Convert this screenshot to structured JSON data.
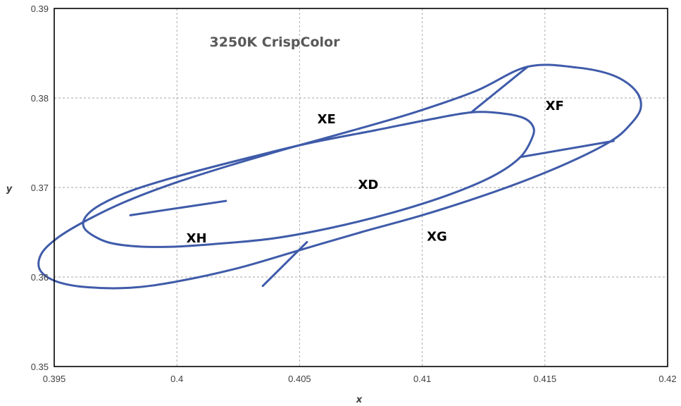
{
  "chart_data": {
    "type": "line",
    "title": "3250K CrispColor",
    "xlabel": "x",
    "ylabel": "y",
    "xlim": [
      0.395,
      0.42
    ],
    "ylim": [
      0.35,
      0.39
    ],
    "x_ticks": [
      "0.395",
      "0.4",
      "0.405",
      "0.41",
      "0.415",
      "0.42"
    ],
    "y_ticks": [
      "0.35",
      "0.36",
      "0.37",
      "0.38",
      "0.39"
    ],
    "grid": true,
    "legend": "none",
    "series_color": "#3f5ba9",
    "series": [
      {
        "closed": true,
        "points": [
          [
            0.4143,
            0.3835
          ],
          [
            0.4163,
            0.3834
          ],
          [
            0.4178,
            0.3825
          ],
          [
            0.4187,
            0.3808
          ],
          [
            0.4189,
            0.3788
          ],
          [
            0.4184,
            0.3768
          ],
          [
            0.4177,
            0.3752
          ],
          [
            0.4163,
            0.3732
          ],
          [
            0.4145,
            0.3711
          ],
          [
            0.4125,
            0.3691
          ],
          [
            0.41,
            0.3669
          ],
          [
            0.4075,
            0.365
          ],
          [
            0.405,
            0.363
          ],
          [
            0.4025,
            0.361
          ],
          [
            0.4,
            0.3595
          ],
          [
            0.3981,
            0.3588
          ],
          [
            0.3962,
            0.3589
          ],
          [
            0.395,
            0.3596
          ],
          [
            0.3944,
            0.3609
          ],
          [
            0.3945,
            0.3627
          ],
          [
            0.3952,
            0.3645
          ],
          [
            0.3963,
            0.3663
          ],
          [
            0.3978,
            0.3683
          ],
          [
            0.3998,
            0.3704
          ],
          [
            0.4022,
            0.3725
          ],
          [
            0.4047,
            0.3745
          ],
          [
            0.4072,
            0.3764
          ],
          [
            0.4097,
            0.3784
          ],
          [
            0.4122,
            0.3808
          ],
          [
            0.4143,
            0.3835
          ]
        ]
      },
      {
        "closed": true,
        "points": [
          [
            0.412,
            0.3784
          ],
          [
            0.4132,
            0.3783
          ],
          [
            0.4141,
            0.3778
          ],
          [
            0.4145,
            0.3769
          ],
          [
            0.4145,
            0.3757
          ],
          [
            0.414,
            0.3734
          ],
          [
            0.4129,
            0.3713
          ],
          [
            0.4111,
            0.3692
          ],
          [
            0.4088,
            0.3672
          ],
          [
            0.4063,
            0.3655
          ],
          [
            0.4039,
            0.3643
          ],
          [
            0.4016,
            0.3637
          ],
          [
            0.4,
            0.3634
          ],
          [
            0.3985,
            0.3634
          ],
          [
            0.3973,
            0.3638
          ],
          [
            0.3966,
            0.3646
          ],
          [
            0.3962,
            0.3656
          ],
          [
            0.3963,
            0.3668
          ],
          [
            0.3969,
            0.3681
          ],
          [
            0.3982,
            0.3697
          ],
          [
            0.4001,
            0.3713
          ],
          [
            0.4026,
            0.3731
          ],
          [
            0.4053,
            0.3749
          ],
          [
            0.4081,
            0.3764
          ],
          [
            0.4103,
            0.3776
          ],
          [
            0.412,
            0.3784
          ]
        ]
      },
      {
        "closed": false,
        "points": [
          [
            0.412,
            0.3784
          ],
          [
            0.4143,
            0.3835
          ]
        ]
      },
      {
        "closed": false,
        "points": [
          [
            0.414,
            0.3734
          ],
          [
            0.4178,
            0.3752
          ]
        ]
      },
      {
        "closed": false,
        "points": [
          [
            0.4053,
            0.3639
          ],
          [
            0.4035,
            0.359
          ]
        ]
      },
      {
        "closed": false,
        "points": [
          [
            0.402,
            0.3685
          ],
          [
            0.3981,
            0.3669
          ]
        ]
      }
    ],
    "annotations": [
      {
        "text": "XD",
        "x": 0.4078,
        "y": 0.3704
      },
      {
        "text": "XE",
        "x": 0.4061,
        "y": 0.3777
      },
      {
        "text": "XF",
        "x": 0.4154,
        "y": 0.3792
      },
      {
        "text": "XG",
        "x": 0.4106,
        "y": 0.3646
      },
      {
        "text": "XH",
        "x": 0.4008,
        "y": 0.3644
      }
    ]
  }
}
